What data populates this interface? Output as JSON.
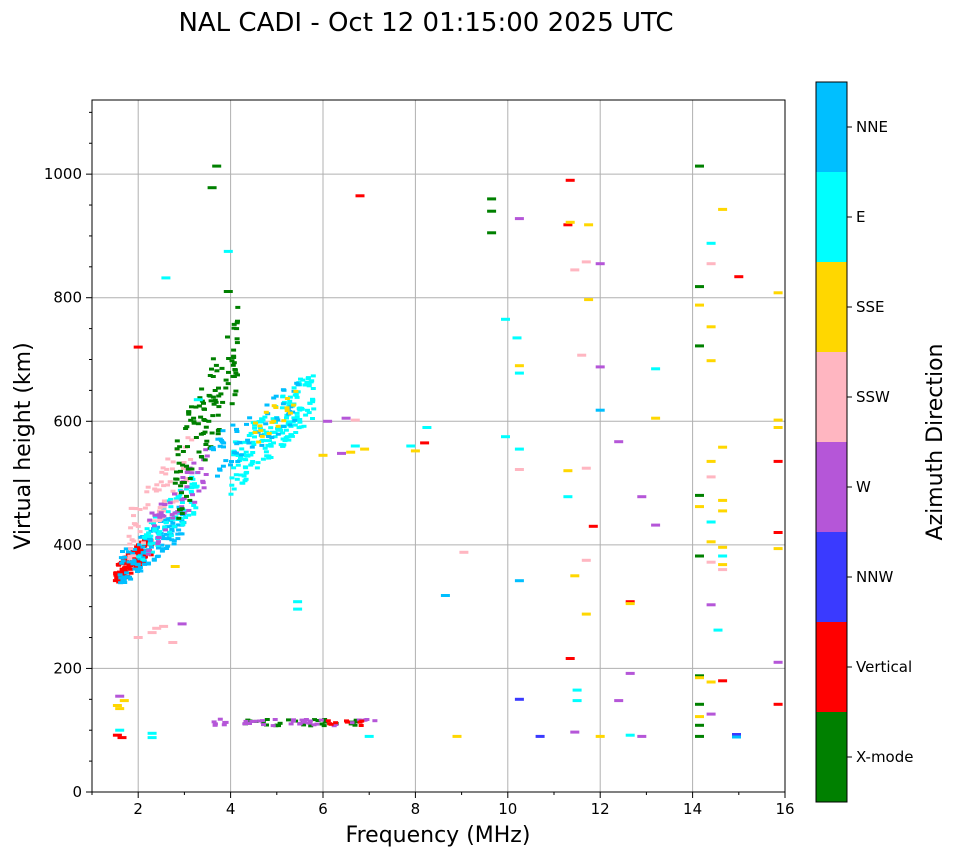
{
  "chart_data": {
    "type": "scatter",
    "title": "NAL CADI - Oct 12 01:15:00 2025 UTC",
    "xlabel": "Frequency (MHz)",
    "ylabel": "Virtual height (km)",
    "xlim": [
      1,
      16
    ],
    "ylim": [
      0,
      1120
    ],
    "xticks": [
      2,
      4,
      6,
      8,
      10,
      12,
      14,
      16
    ],
    "yticks": [
      0,
      200,
      400,
      600,
      800,
      1000
    ],
    "grid": true,
    "colorbar": {
      "label": "Azimuth Direction",
      "categories": [
        {
          "name": "X-mode",
          "color": "#008000"
        },
        {
          "name": "Vertical",
          "color": "#ff0000"
        },
        {
          "name": "NNW",
          "color": "#3a3aff"
        },
        {
          "name": "W",
          "color": "#b556d8"
        },
        {
          "name": "SSW",
          "color": "#ffb6c1"
        },
        {
          "name": "SSE",
          "color": "#ffd700"
        },
        {
          "name": "E",
          "color": "#00ffff"
        },
        {
          "name": "NNE",
          "color": "#00bfff"
        }
      ]
    },
    "clusters": [
      {
        "category": "Vertical",
        "x": [
          1.5,
          2.3
        ],
        "y": [
          330,
          420
        ],
        "n": 140
      },
      {
        "category": "NNE",
        "x": [
          1.6,
          3.0
        ],
        "y": [
          330,
          470
        ],
        "n": 120
      },
      {
        "category": "E",
        "x": [
          2.0,
          3.3
        ],
        "y": [
          360,
          520
        ],
        "n": 80
      },
      {
        "category": "SSW",
        "x": [
          1.8,
          3.2
        ],
        "y": [
          370,
          600
        ],
        "n": 70
      },
      {
        "category": "W",
        "x": [
          2.2,
          3.5
        ],
        "y": [
          380,
          560
        ],
        "n": 50
      },
      {
        "category": "X-mode",
        "x": [
          2.8,
          4.2
        ],
        "y": [
          420,
          800
        ],
        "n": 120
      },
      {
        "category": "E",
        "x": [
          4.0,
          5.8
        ],
        "y": [
          480,
          690
        ],
        "n": 180
      },
      {
        "category": "NNE",
        "x": [
          3.5,
          5.5
        ],
        "y": [
          500,
          670
        ],
        "n": 60
      },
      {
        "category": "SSE",
        "x": [
          4.5,
          5.5
        ],
        "y": [
          560,
          660
        ],
        "n": 20
      },
      {
        "category": "X-mode",
        "x": [
          4.0,
          6.8
        ],
        "y": [
          107,
          118
        ],
        "n": 30
      },
      {
        "category": "W",
        "x": [
          3.6,
          7.2
        ],
        "y": [
          107,
          118
        ],
        "n": 40
      },
      {
        "category": "Vertical",
        "x": [
          6.0,
          7.0
        ],
        "y": [
          107,
          118
        ],
        "n": 10
      }
    ],
    "points": [
      {
        "category": "SSE",
        "x": 6.9,
        "y": 555
      },
      {
        "category": "SSE",
        "x": 6.6,
        "y": 550
      },
      {
        "category": "W",
        "x": 6.4,
        "y": 548
      },
      {
        "category": "E",
        "x": 6.7,
        "y": 560
      },
      {
        "category": "W",
        "x": 6.5,
        "y": 605
      },
      {
        "category": "SSW",
        "x": 6.7,
        "y": 602
      },
      {
        "category": "W",
        "x": 6.1,
        "y": 600
      },
      {
        "category": "E",
        "x": 7.9,
        "y": 560
      },
      {
        "category": "Vertical",
        "x": 8.2,
        "y": 565
      },
      {
        "category": "E",
        "x": 8.25,
        "y": 590
      },
      {
        "category": "SSE",
        "x": 8.0,
        "y": 552
      },
      {
        "category": "Vertical",
        "x": 6.8,
        "y": 965
      },
      {
        "category": "X-mode",
        "x": 9.65,
        "y": 960
      },
      {
        "category": "X-mode",
        "x": 9.65,
        "y": 940
      },
      {
        "category": "X-mode",
        "x": 9.65,
        "y": 905
      },
      {
        "category": "E",
        "x": 10.2,
        "y": 735
      },
      {
        "category": "E",
        "x": 9.95,
        "y": 765
      },
      {
        "category": "SSE",
        "x": 10.25,
        "y": 690
      },
      {
        "category": "E",
        "x": 10.25,
        "y": 678
      },
      {
        "category": "E",
        "x": 9.95,
        "y": 575
      },
      {
        "category": "E",
        "x": 10.25,
        "y": 555
      },
      {
        "category": "SSW",
        "x": 10.25,
        "y": 522
      },
      {
        "category": "NNE",
        "x": 10.25,
        "y": 342
      },
      {
        "category": "NNW",
        "x": 10.25,
        "y": 150
      },
      {
        "category": "NNW",
        "x": 10.7,
        "y": 90
      },
      {
        "category": "W",
        "x": 10.25,
        "y": 928
      },
      {
        "category": "Vertical",
        "x": 11.35,
        "y": 990
      },
      {
        "category": "Vertical",
        "x": 11.3,
        "y": 918
      },
      {
        "category": "SSE",
        "x": 11.35,
        "y": 922
      },
      {
        "category": "SSE",
        "x": 11.75,
        "y": 918
      },
      {
        "category": "SSW",
        "x": 11.7,
        "y": 858
      },
      {
        "category": "W",
        "x": 12.0,
        "y": 855
      },
      {
        "category": "SSW",
        "x": 11.45,
        "y": 845
      },
      {
        "category": "SSE",
        "x": 11.75,
        "y": 797
      },
      {
        "category": "SSW",
        "x": 11.6,
        "y": 707
      },
      {
        "category": "W",
        "x": 12.0,
        "y": 688
      },
      {
        "category": "NNE",
        "x": 12.0,
        "y": 618
      },
      {
        "category": "SSE",
        "x": 13.2,
        "y": 605
      },
      {
        "category": "E",
        "x": 13.2,
        "y": 685
      },
      {
        "category": "W",
        "x": 12.4,
        "y": 567
      },
      {
        "category": "SSW",
        "x": 11.7,
        "y": 524
      },
      {
        "category": "SSE",
        "x": 11.3,
        "y": 520
      },
      {
        "category": "E",
        "x": 11.3,
        "y": 478
      },
      {
        "category": "W",
        "x": 12.9,
        "y": 478
      },
      {
        "category": "W",
        "x": 13.2,
        "y": 432
      },
      {
        "category": "Vertical",
        "x": 11.85,
        "y": 430
      },
      {
        "category": "SSW",
        "x": 11.7,
        "y": 375
      },
      {
        "category": "SSE",
        "x": 11.45,
        "y": 350
      },
      {
        "category": "SSE",
        "x": 11.7,
        "y": 288
      },
      {
        "category": "Vertical",
        "x": 12.65,
        "y": 308
      },
      {
        "category": "SSE",
        "x": 12.65,
        "y": 305
      },
      {
        "category": "Vertical",
        "x": 11.35,
        "y": 216
      },
      {
        "category": "W",
        "x": 12.65,
        "y": 192
      },
      {
        "category": "E",
        "x": 11.5,
        "y": 165
      },
      {
        "category": "E",
        "x": 11.5,
        "y": 148
      },
      {
        "category": "W",
        "x": 12.4,
        "y": 148
      },
      {
        "category": "W",
        "x": 11.45,
        "y": 97
      },
      {
        "category": "SSE",
        "x": 12.0,
        "y": 90
      },
      {
        "category": "E",
        "x": 12.65,
        "y": 92
      },
      {
        "category": "W",
        "x": 12.9,
        "y": 90
      },
      {
        "category": "SSW",
        "x": 9.05,
        "y": 388
      },
      {
        "category": "NNE",
        "x": 8.65,
        "y": 318
      },
      {
        "category": "SSE",
        "x": 8.9,
        "y": 90
      },
      {
        "category": "E",
        "x": 7.0,
        "y": 90
      },
      {
        "category": "X-mode",
        "x": 14.15,
        "y": 1013
      },
      {
        "category": "SSE",
        "x": 14.65,
        "y": 943
      },
      {
        "category": "E",
        "x": 14.4,
        "y": 888
      },
      {
        "category": "SSW",
        "x": 14.4,
        "y": 855
      },
      {
        "category": "Vertical",
        "x": 15.0,
        "y": 834
      },
      {
        "category": "X-mode",
        "x": 14.15,
        "y": 818
      },
      {
        "category": "SSE",
        "x": 15.85,
        "y": 808
      },
      {
        "category": "SSE",
        "x": 14.15,
        "y": 788
      },
      {
        "category": "SSE",
        "x": 14.4,
        "y": 753
      },
      {
        "category": "X-mode",
        "x": 14.15,
        "y": 722
      },
      {
        "category": "SSE",
        "x": 14.4,
        "y": 698
      },
      {
        "category": "SSE",
        "x": 15.85,
        "y": 602
      },
      {
        "category": "SSE",
        "x": 15.85,
        "y": 590
      },
      {
        "category": "SSE",
        "x": 14.65,
        "y": 558
      },
      {
        "category": "Vertical",
        "x": 15.85,
        "y": 535
      },
      {
        "category": "SSE",
        "x": 14.4,
        "y": 535
      },
      {
        "category": "SSW",
        "x": 14.4,
        "y": 510
      },
      {
        "category": "X-mode",
        "x": 14.15,
        "y": 480
      },
      {
        "category": "SSE",
        "x": 14.65,
        "y": 472
      },
      {
        "category": "SSE",
        "x": 14.15,
        "y": 462
      },
      {
        "category": "SSE",
        "x": 14.65,
        "y": 455
      },
      {
        "category": "E",
        "x": 14.4,
        "y": 437
      },
      {
        "category": "Vertical",
        "x": 15.85,
        "y": 420
      },
      {
        "category": "SSE",
        "x": 14.4,
        "y": 405
      },
      {
        "category": "SSE",
        "x": 14.65,
        "y": 396
      },
      {
        "category": "SSE",
        "x": 15.85,
        "y": 394
      },
      {
        "category": "X-mode",
        "x": 14.15,
        "y": 382
      },
      {
        "category": "E",
        "x": 14.65,
        "y": 382
      },
      {
        "category": "SSW",
        "x": 14.4,
        "y": 372
      },
      {
        "category": "SSE",
        "x": 14.65,
        "y": 368
      },
      {
        "category": "SSW",
        "x": 14.65,
        "y": 360
      },
      {
        "category": "W",
        "x": 14.4,
        "y": 303
      },
      {
        "category": "E",
        "x": 14.55,
        "y": 262
      },
      {
        "category": "W",
        "x": 15.85,
        "y": 210
      },
      {
        "category": "X-mode",
        "x": 14.15,
        "y": 188
      },
      {
        "category": "SSE",
        "x": 14.15,
        "y": 185
      },
      {
        "category": "Vertical",
        "x": 14.65,
        "y": 180
      },
      {
        "category": "SSE",
        "x": 14.4,
        "y": 178
      },
      {
        "category": "Vertical",
        "x": 15.85,
        "y": 142
      },
      {
        "category": "X-mode",
        "x": 14.15,
        "y": 142
      },
      {
        "category": "W",
        "x": 14.4,
        "y": 126
      },
      {
        "category": "SSE",
        "x": 14.15,
        "y": 122
      },
      {
        "category": "X-mode",
        "x": 14.15,
        "y": 108
      },
      {
        "category": "X-mode",
        "x": 14.15,
        "y": 90
      },
      {
        "category": "NNW",
        "x": 14.95,
        "y": 93
      },
      {
        "category": "NNE",
        "x": 14.95,
        "y": 89
      },
      {
        "category": "SSW",
        "x": 2.4,
        "y": 265
      },
      {
        "category": "SSW",
        "x": 2.3,
        "y": 258
      },
      {
        "category": "SSW",
        "x": 2.55,
        "y": 268
      },
      {
        "category": "SSW",
        "x": 2.75,
        "y": 242
      },
      {
        "category": "W",
        "x": 2.95,
        "y": 272
      },
      {
        "category": "SSW",
        "x": 2.0,
        "y": 250
      },
      {
        "category": "Vertical",
        "x": 2.0,
        "y": 720
      },
      {
        "category": "E",
        "x": 2.6,
        "y": 832
      },
      {
        "category": "X-mode",
        "x": 3.7,
        "y": 1013
      },
      {
        "category": "X-mode",
        "x": 3.6,
        "y": 978
      },
      {
        "category": "E",
        "x": 3.95,
        "y": 875
      },
      {
        "category": "X-mode",
        "x": 3.95,
        "y": 810
      },
      {
        "category": "E",
        "x": 3.3,
        "y": 635
      },
      {
        "category": "E",
        "x": 5.45,
        "y": 308
      },
      {
        "category": "E",
        "x": 5.45,
        "y": 296
      },
      {
        "category": "SSE",
        "x": 1.55,
        "y": 140
      },
      {
        "category": "SSE",
        "x": 1.6,
        "y": 135
      },
      {
        "category": "W",
        "x": 1.6,
        "y": 155
      },
      {
        "category": "SSE",
        "x": 1.7,
        "y": 148
      },
      {
        "category": "Vertical",
        "x": 1.55,
        "y": 92
      },
      {
        "category": "E",
        "x": 1.6,
        "y": 100
      },
      {
        "category": "Vertical",
        "x": 1.65,
        "y": 88
      },
      {
        "category": "E",
        "x": 2.3,
        "y": 95
      },
      {
        "category": "E",
        "x": 2.3,
        "y": 88
      },
      {
        "category": "SSE",
        "x": 2.8,
        "y": 365
      },
      {
        "category": "SSE",
        "x": 6.0,
        "y": 545
      }
    ]
  }
}
